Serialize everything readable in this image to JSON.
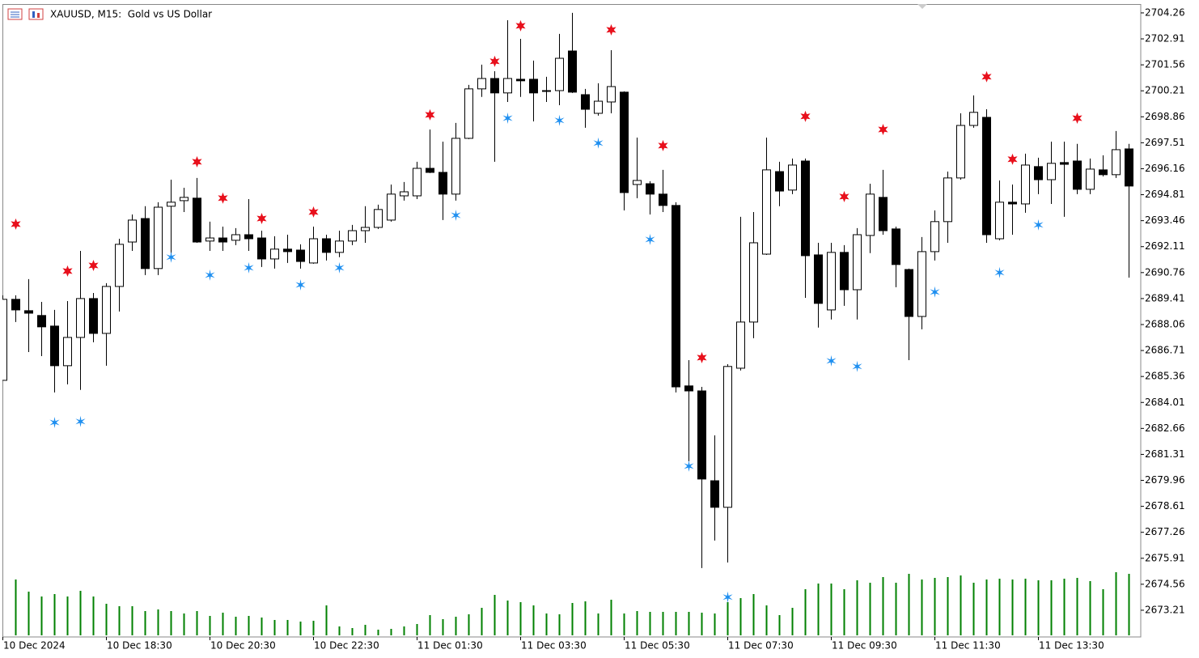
{
  "chart_data": {
    "type": "candlestick",
    "title": "XAUUSD, M15:  Gold vs US Dollar",
    "categories": [
      "10 Dec 2024",
      null,
      null,
      null,
      null,
      null,
      null,
      null,
      "10 Dec 18:30",
      null,
      null,
      null,
      null,
      null,
      null,
      null,
      "10 Dec 20:30",
      null,
      null,
      null,
      null,
      null,
      null,
      null,
      "10 Dec 22:30",
      null,
      null,
      null,
      null,
      null,
      null,
      null,
      "11 Dec 01:30",
      null,
      null,
      null,
      null,
      null,
      null,
      null,
      "11 Dec 03:30",
      null,
      null,
      null,
      null,
      null,
      null,
      null,
      "11 Dec 05:30",
      null,
      null,
      null,
      null,
      null,
      null,
      null,
      "11 Dec 07:30",
      null,
      null,
      null,
      null,
      null,
      null,
      null,
      "11 Dec 09:30",
      null,
      null,
      null,
      null,
      null,
      null,
      null,
      "11 Dec 11:30",
      null,
      null,
      null,
      null,
      null,
      null,
      null,
      "11 Dec 13:30",
      null,
      null,
      null,
      null,
      null,
      null,
      null
    ],
    "open": [
      2685.16,
      2689.37,
      2688.78,
      2688.53,
      2687.98,
      2685.92,
      2687.39,
      2689.41,
      2687.6,
      2690.04,
      2692.35,
      2693.57,
      2690.97,
      2694.21,
      2694.5,
      2694.63,
      2692.4,
      2692.56,
      2692.44,
      2692.73,
      2692.56,
      2691.47,
      2691.98,
      2691.93,
      2691.26,
      2692.52,
      2691.81,
      2692.4,
      2692.94,
      2693.11,
      2693.49,
      2694.75,
      2694.75,
      2696.18,
      2695.97,
      2694.84,
      2697.74,
      2700.31,
      2700.85,
      2700.1,
      2700.81,
      2700.81,
      2700.22,
      2700.22,
      2702.28,
      2700.01,
      2699.04,
      2699.63,
      2700.14,
      2695.34,
      2695.38,
      2694.84,
      2694.25,
      2684.87,
      2684.61,
      2679.94,
      2678.56,
      2685.79,
      2688.19,
      2691.72,
      2696.01,
      2695.05,
      2696.56,
      2691.68,
      2688.82,
      2691.81,
      2689.87,
      2692.69,
      2694.67,
      2693.03,
      2690.92,
      2688.48,
      2691.85,
      2693.41,
      2695.68,
      2698.41,
      2698.83,
      2692.52,
      2694.42,
      2694.33,
      2696.27,
      2695.59,
      2696.48,
      2696.56,
      2695.09,
      2696.1,
      2695.85,
      2697.19
    ],
    "high": [
      2689.58,
      2689.58,
      2690.42,
      2689.24,
      2688.82,
      2689.28,
      2691.89,
      2689.7,
      2690.21,
      2692.52,
      2693.78,
      2694.21,
      2694.42,
      2695.59,
      2695.17,
      2695.68,
      2693.41,
      2693.15,
      2693.07,
      2694.58,
      2692.94,
      2692.65,
      2692.73,
      2692.23,
      2693.15,
      2692.73,
      2692.94,
      2693.24,
      2694.21,
      2694.29,
      2695.34,
      2695.47,
      2696.52,
      2698.2,
      2697.57,
      2698.54,
      2700.52,
      2701.57,
      2701.23,
      2703.88,
      2702.91,
      2701.78,
      2700.94,
      2703.17,
      2704.26,
      2700.31,
      2700.6,
      2702.32,
      2700.18,
      2697.78,
      2695.51,
      2696.1,
      2694.42,
      2686.21,
      2684.82,
      2682.3,
      2686.0,
      2693.66,
      2693.91,
      2697.78,
      2696.52,
      2696.69,
      2696.69,
      2692.31,
      2692.31,
      2692.19,
      2693.07,
      2695.38,
      2696.1,
      2693.15,
      2690.97,
      2692.61,
      2693.99,
      2696.01,
      2699.04,
      2699.97,
      2699.25,
      2695.55,
      2695.34,
      2696.94,
      2696.73,
      2697.57,
      2697.57,
      2697.45,
      2696.69,
      2696.86,
      2698.12,
      2697.45
    ],
    "low": [
      2685.16,
      2688.19,
      2686.63,
      2686.42,
      2684.53,
      2684.95,
      2684.66,
      2687.14,
      2685.92,
      2688.74,
      2691.89,
      2690.63,
      2690.63,
      2691.47,
      2693.91,
      2692.31,
      2691.89,
      2691.89,
      2692.19,
      2691.89,
      2691.05,
      2690.97,
      2691.26,
      2690.97,
      2691.22,
      2691.39,
      2691.56,
      2692.19,
      2692.31,
      2693.03,
      2693.41,
      2694.5,
      2694.58,
      2695.93,
      2693.49,
      2694.5,
      2697.7,
      2699.89,
      2696.52,
      2699.63,
      2699.89,
      2698.62,
      2699.63,
      2699.46,
      2700.1,
      2698.29,
      2698.92,
      2699.04,
      2693.99,
      2694.63,
      2693.78,
      2693.91,
      2684.53,
      2680.95,
      2675.4,
      2676.83,
      2675.69,
      2685.67,
      2687.35,
      2691.68,
      2694.21,
      2694.84,
      2689.45,
      2687.9,
      2688.32,
      2689.03,
      2688.32,
      2691.77,
      2692.73,
      2690.0,
      2686.21,
      2687.81,
      2691.39,
      2692.31,
      2695.59,
      2698.29,
      2692.31,
      2692.44,
      2692.73,
      2693.87,
      2694.84,
      2694.33,
      2693.66,
      2694.84,
      2694.84,
      2695.76,
      2695.68,
      2690.5
    ],
    "close": [
      2689.37,
      2688.82,
      2688.65,
      2687.94,
      2685.92,
      2687.39,
      2689.41,
      2687.6,
      2690.04,
      2692.23,
      2693.49,
      2690.97,
      2694.16,
      2694.42,
      2694.67,
      2692.35,
      2692.56,
      2692.35,
      2692.73,
      2692.52,
      2691.47,
      2691.98,
      2691.85,
      2691.34,
      2692.52,
      2691.81,
      2692.4,
      2692.94,
      2693.11,
      2694.04,
      2694.84,
      2694.96,
      2696.18,
      2695.97,
      2694.84,
      2697.74,
      2700.31,
      2700.85,
      2700.1,
      2700.85,
      2700.73,
      2700.1,
      2700.18,
      2701.9,
      2700.14,
      2699.25,
      2699.67,
      2700.43,
      2694.92,
      2695.55,
      2694.84,
      2694.25,
      2684.82,
      2684.61,
      2680.03,
      2678.56,
      2685.88,
      2688.19,
      2692.31,
      2696.1,
      2695.0,
      2696.35,
      2691.64,
      2689.16,
      2691.81,
      2689.87,
      2692.73,
      2694.84,
      2692.94,
      2691.18,
      2688.48,
      2691.85,
      2693.41,
      2695.68,
      2698.41,
      2699.09,
      2692.73,
      2694.42,
      2694.33,
      2696.35,
      2695.59,
      2696.44,
      2696.39,
      2695.09,
      2696.14,
      2695.85,
      2697.15,
      2695.26
    ],
    "up_color": "#ffffff",
    "down_color": "#000000",
    "sell_signals": {
      "color": "#e8101c",
      "values": [
        null,
        2693.28,
        null,
        null,
        null,
        2690.84,
        null,
        2691.13,
        null,
        null,
        null,
        null,
        null,
        null,
        null,
        2696.52,
        null,
        2694.63,
        null,
        null,
        2693.57,
        null,
        null,
        null,
        2693.91,
        null,
        null,
        null,
        null,
        null,
        null,
        null,
        null,
        2698.96,
        null,
        null,
        null,
        null,
        2701.74,
        null,
        2703.59,
        null,
        null,
        null,
        null,
        null,
        null,
        2703.38,
        null,
        null,
        null,
        2697.36,
        null,
        null,
        2686.34,
        null,
        null,
        null,
        null,
        null,
        null,
        null,
        2698.88,
        null,
        null,
        2694.71,
        null,
        null,
        2698.2,
        null,
        null,
        null,
        null,
        null,
        null,
        null,
        2700.94,
        null,
        2696.65,
        null,
        null,
        null,
        null,
        2698.79,
        null,
        null,
        null,
        null
      ]
    },
    "buy_signals": {
      "color": "#1e8ff0",
      "values": [
        null,
        null,
        null,
        null,
        2682.97,
        null,
        2683.02,
        null,
        null,
        null,
        null,
        null,
        null,
        2691.56,
        null,
        null,
        2690.63,
        null,
        null,
        2691.01,
        null,
        null,
        null,
        2690.12,
        null,
        null,
        2691.01,
        null,
        null,
        null,
        null,
        null,
        null,
        null,
        null,
        2693.74,
        null,
        null,
        null,
        2698.79,
        null,
        null,
        null,
        2698.67,
        null,
        null,
        2697.49,
        null,
        null,
        null,
        2692.48,
        null,
        null,
        2680.7,
        null,
        null,
        2673.89,
        null,
        null,
        null,
        null,
        null,
        null,
        null,
        2686.17,
        null,
        2685.88,
        null,
        null,
        null,
        null,
        null,
        2689.75,
        null,
        null,
        null,
        null,
        2690.76,
        null,
        null,
        2693.24,
        null,
        null,
        null,
        null,
        null,
        null,
        null
      ]
    },
    "volume": {
      "color": "#008000",
      "values": [
        null,
        69,
        54,
        48,
        51,
        48,
        55,
        48,
        39,
        36,
        36,
        30,
        32,
        30,
        27,
        30,
        24,
        28,
        23,
        24,
        22,
        19,
        19,
        17,
        18,
        37,
        11,
        9,
        13,
        7,
        8,
        11,
        14,
        25,
        20,
        23,
        26,
        34,
        50,
        43,
        41,
        37,
        27,
        26,
        40,
        42,
        27,
        44,
        27,
        30,
        29,
        29,
        29,
        29,
        28,
        27,
        41,
        46,
        51,
        37,
        25,
        34,
        57,
        64,
        64,
        57,
        68,
        65,
        72,
        65,
        76,
        69,
        71,
        72,
        74,
        65,
        69,
        70,
        69,
        70,
        68,
        68,
        70,
        71,
        67,
        57,
        78,
        76
      ]
    },
    "ylim": [
      2671.82,
      2704.72
    ],
    "yticks": [
      2704.26,
      2702.91,
      2701.56,
      2700.21,
      2698.86,
      2697.51,
      2696.16,
      2694.81,
      2693.46,
      2692.11,
      2690.76,
      2689.41,
      2688.06,
      2686.71,
      2685.36,
      2684.01,
      2682.66,
      2681.31,
      2679.96,
      2678.61,
      2677.26,
      2675.91,
      2674.56,
      2673.21
    ],
    "grid": false
  }
}
